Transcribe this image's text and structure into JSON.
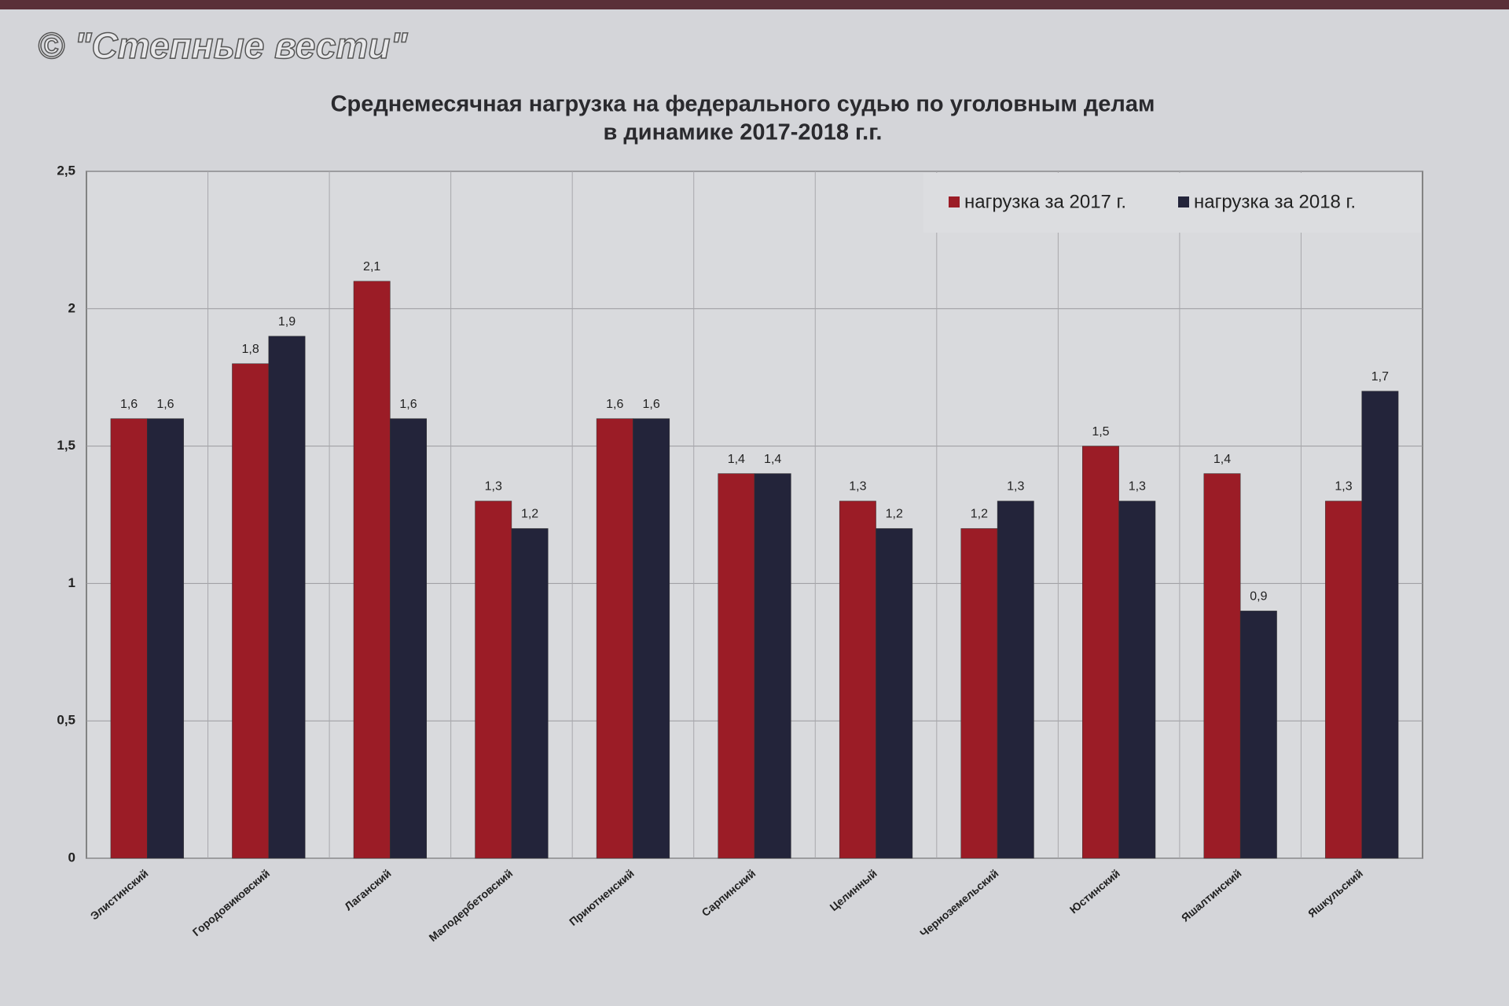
{
  "watermark": "© \"Степные вести\"",
  "chart_data": {
    "type": "bar",
    "title": "Среднемесячная нагрузка на федерального судью по уголовным делам",
    "subtitle": "в динамике 2017-2018 г.г.",
    "categories": [
      "Элистинский",
      "Городовиковский",
      "Лаганский",
      "Малодербетовский",
      "Приютненский",
      "Сарпинский",
      "Целинный",
      "Черноземельский",
      "Юстинский",
      "Яшалтинский",
      "Яшкульский"
    ],
    "series": [
      {
        "name": "нагрузка за 2017 г.",
        "color": "#9b1c26",
        "values": [
          1.6,
          1.8,
          2.1,
          1.3,
          1.6,
          1.4,
          1.3,
          1.2,
          1.5,
          1.4,
          1.3
        ],
        "value_labels": [
          "1,6",
          "1,8",
          "2,1",
          "1,3",
          "1,6",
          "1,4",
          "1,3",
          "1,2",
          "1,5",
          "1,4",
          "1,3"
        ]
      },
      {
        "name": "нагрузка за 2018 г.",
        "color": "#23243a",
        "values": [
          1.6,
          1.9,
          1.6,
          1.2,
          1.6,
          1.4,
          1.2,
          1.3,
          1.3,
          0.9,
          1.7
        ],
        "value_labels": [
          "1,6",
          "1,9",
          "1,6",
          "1,2",
          "1,6",
          "1,4",
          "1,2",
          "1,3",
          "1,3",
          "0,9",
          "1,7"
        ]
      }
    ],
    "ylim": [
      0,
      2.5
    ],
    "yticks": [
      0,
      {
        "value": 0.5,
        "label": "0,5"
      },
      1,
      {
        "value": 1.5,
        "label": "1,5"
      },
      2,
      {
        "value": 2.5,
        "label": "2,5"
      }
    ],
    "grid": true,
    "legend": "upper right"
  }
}
